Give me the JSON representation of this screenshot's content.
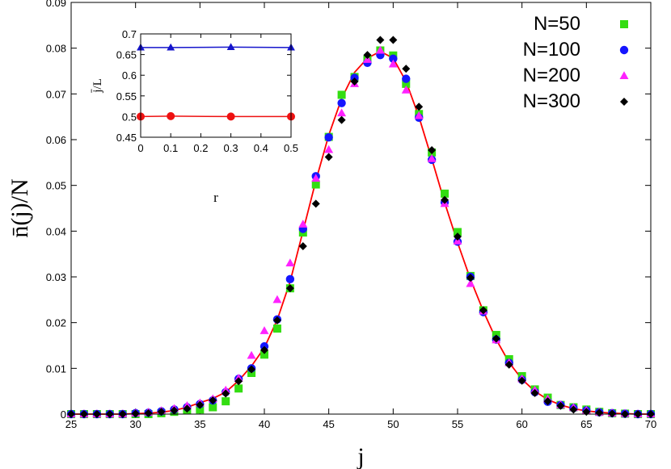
{
  "chart_data": [
    {
      "type": "scatter",
      "xlabel": "j",
      "ylabel": "n̄(j)/N",
      "xlim": [
        25,
        70
      ],
      "ylim": [
        0,
        0.09
      ],
      "xticks": [
        25,
        30,
        35,
        40,
        45,
        50,
        55,
        60,
        65,
        70
      ],
      "yticks": [
        0,
        0.01,
        0.02,
        0.03,
        0.04,
        0.05,
        0.06,
        0.07,
        0.08,
        0.09
      ],
      "legend_position": "top-right",
      "grid": false,
      "fit_color": "#ff0000",
      "fit_curve": {
        "x": [
          25,
          26,
          27,
          28,
          29,
          30,
          31,
          32,
          33,
          34,
          35,
          36,
          37,
          38,
          39,
          40,
          41,
          42,
          43,
          44,
          45,
          46,
          47,
          48,
          49,
          50,
          51,
          52,
          53,
          54,
          55,
          56,
          57,
          58,
          59,
          60,
          61,
          62,
          63,
          64,
          65,
          66,
          67,
          68,
          69,
          70
        ],
        "y": [
          0,
          0,
          0,
          0,
          0,
          0.0001,
          0.0002,
          0.0004,
          0.0008,
          0.0015,
          0.0025,
          0.0034,
          0.0048,
          0.0073,
          0.0105,
          0.0145,
          0.0206,
          0.029,
          0.04,
          0.051,
          0.061,
          0.069,
          0.0747,
          0.0778,
          0.0793,
          0.0778,
          0.0727,
          0.065,
          0.0558,
          0.0462,
          0.0375,
          0.0295,
          0.0225,
          0.0163,
          0.0113,
          0.0076,
          0.005,
          0.0032,
          0.002,
          0.0012,
          0.0007,
          0.0004,
          0.0002,
          0.0001,
          0,
          0
        ]
      },
      "series": [
        {
          "name": "N=50",
          "marker": "square",
          "color": "#33dd11",
          "x": [
            25,
            26,
            27,
            28,
            29,
            30,
            31,
            32,
            33,
            34,
            35,
            36,
            37,
            38,
            39,
            40,
            41,
            42,
            43,
            44,
            45,
            46,
            47,
            48,
            49,
            50,
            51,
            52,
            53,
            54,
            55,
            56,
            57,
            58,
            59,
            60,
            61,
            62,
            63,
            64,
            65,
            66,
            67,
            68,
            69,
            70
          ],
          "y": [
            0,
            0,
            0,
            0,
            0,
            0,
            0,
            0.0002,
            0.0005,
            0.0008,
            0.001,
            0.0015,
            0.0028,
            0.0056,
            0.009,
            0.013,
            0.0187,
            0.0275,
            0.0397,
            0.0502,
            0.0606,
            0.0698,
            0.0737,
            0.0775,
            0.0795,
            0.0784,
            0.0722,
            0.0656,
            0.0572,
            0.0482,
            0.0398,
            0.0302,
            0.0227,
            0.0173,
            0.012,
            0.0083,
            0.0054,
            0.0036,
            0.002,
            0.0015,
            0.001,
            0.0005,
            0.0002,
            0.0001,
            0,
            0
          ]
        },
        {
          "name": "N=100",
          "marker": "circle",
          "color": "#1515ff",
          "x": [
            25,
            26,
            27,
            28,
            29,
            30,
            31,
            32,
            33,
            34,
            35,
            36,
            37,
            38,
            39,
            40,
            41,
            42,
            43,
            44,
            45,
            46,
            47,
            48,
            49,
            50,
            51,
            52,
            53,
            54,
            55,
            56,
            57,
            58,
            59,
            60,
            61,
            62,
            63,
            64,
            65,
            66,
            67,
            68,
            69,
            70
          ],
          "y": [
            0,
            0,
            0,
            0,
            0,
            0.0002,
            0.0003,
            0.0006,
            0.001,
            0.0015,
            0.0022,
            0.003,
            0.0048,
            0.0077,
            0.01,
            0.0148,
            0.0207,
            0.0295,
            0.0405,
            0.052,
            0.0605,
            0.068,
            0.0735,
            0.0768,
            0.0785,
            0.0777,
            0.0733,
            0.0648,
            0.0556,
            0.0463,
            0.0377,
            0.03,
            0.0223,
            0.0163,
            0.0112,
            0.0075,
            0.0048,
            0.0027,
            0.002,
            0.0013,
            0.0008,
            0.0004,
            0.0002,
            0.0001,
            0,
            0
          ]
        },
        {
          "name": "N=200",
          "marker": "triangle",
          "color": "#ff22ff",
          "x": [
            25,
            26,
            27,
            28,
            29,
            30,
            31,
            32,
            33,
            34,
            35,
            36,
            37,
            38,
            39,
            40,
            41,
            42,
            43,
            44,
            45,
            46,
            47,
            48,
            49,
            50,
            51,
            52,
            53,
            54,
            55,
            56,
            57,
            58,
            59,
            60,
            61,
            62,
            63,
            64,
            65,
            66,
            67,
            68,
            69,
            70
          ],
          "y": [
            0,
            0,
            0,
            0,
            0,
            0.0002,
            0.0004,
            0.0007,
            0.0012,
            0.0018,
            0.0024,
            0.0033,
            0.0052,
            0.0078,
            0.0128,
            0.0182,
            0.025,
            0.033,
            0.0415,
            0.0515,
            0.0578,
            0.0658,
            0.0722,
            0.0775,
            0.0795,
            0.0765,
            0.0708,
            0.0652,
            0.0558,
            0.046,
            0.0378,
            0.0285,
            0.0225,
            0.0162,
            0.0112,
            0.0077,
            0.0052,
            0.0033,
            0.002,
            0.0014,
            0.0008,
            0.0004,
            0.0002,
            0.0001,
            0,
            0
          ]
        },
        {
          "name": "N=300",
          "marker": "diamond",
          "color": "#000000",
          "x": [
            25,
            26,
            27,
            28,
            29,
            30,
            31,
            32,
            33,
            34,
            35,
            36,
            37,
            38,
            39,
            40,
            41,
            42,
            43,
            44,
            45,
            46,
            47,
            48,
            49,
            50,
            51,
            52,
            53,
            54,
            55,
            56,
            57,
            58,
            59,
            60,
            61,
            62,
            63,
            64,
            65,
            66,
            67,
            68,
            69,
            70
          ],
          "y": [
            0,
            0,
            0,
            0,
            0,
            0.0001,
            0.0002,
            0.0005,
            0.0008,
            0.0012,
            0.002,
            0.003,
            0.0045,
            0.0072,
            0.0098,
            0.014,
            0.0205,
            0.0275,
            0.0367,
            0.046,
            0.0562,
            0.0643,
            0.0727,
            0.0785,
            0.0818,
            0.0818,
            0.0755,
            0.0672,
            0.0577,
            0.0468,
            0.0388,
            0.0298,
            0.0227,
            0.0165,
            0.0108,
            0.0073,
            0.0046,
            0.0028,
            0.0018,
            0.001,
            0.0005,
            0.0003,
            0.0001,
            0,
            0,
            0
          ]
        }
      ]
    },
    {
      "type": "line",
      "xlabel": "r",
      "ylabel": "j̄/L",
      "xlim": [
        0,
        0.5
      ],
      "ylim": [
        0.45,
        0.7
      ],
      "xticks": [
        0,
        0.1,
        0.2,
        0.3,
        0.4,
        0.5
      ],
      "yticks": [
        0.45,
        0.5,
        0.55,
        0.6,
        0.65,
        0.7
      ],
      "series": [
        {
          "marker": "triangle",
          "color": "#1515cc",
          "x": [
            0,
            0.1,
            0.3,
            0.5
          ],
          "y": [
            0.667,
            0.667,
            0.668,
            0.667
          ]
        },
        {
          "marker": "circle",
          "color": "#ee1111",
          "x": [
            0,
            0.1,
            0.3,
            0.5
          ],
          "y": [
            0.5,
            0.501,
            0.5,
            0.5
          ]
        }
      ]
    }
  ]
}
